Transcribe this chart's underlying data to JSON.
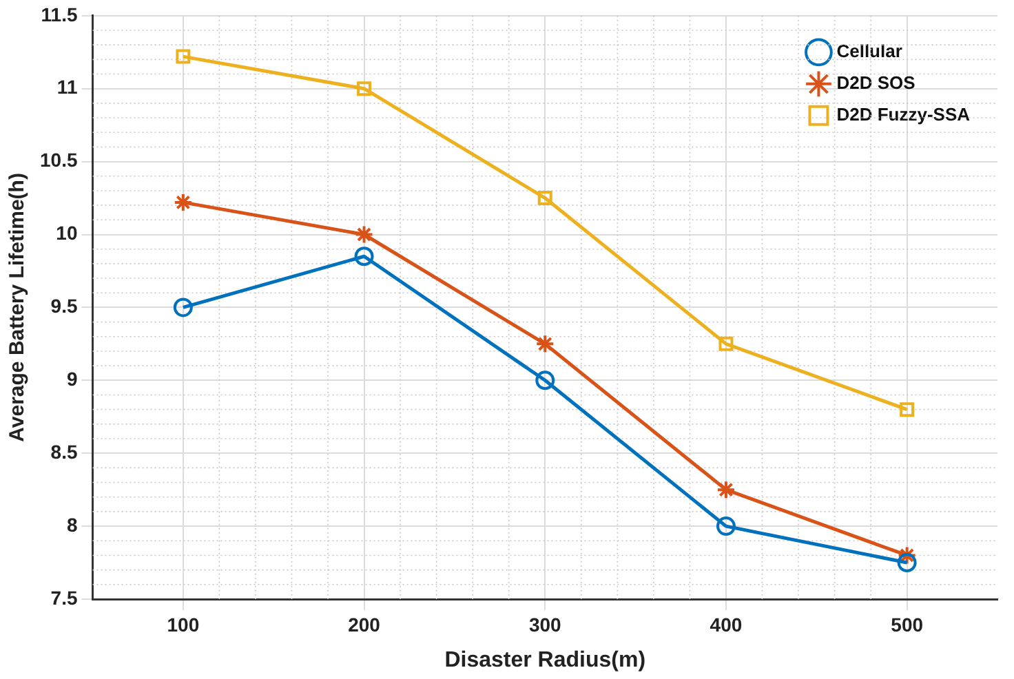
{
  "chart_data": {
    "type": "line",
    "xlabel": "Disaster Radius(m)",
    "ylabel": "Average Battery Lifetime(h)",
    "x": [
      100,
      200,
      300,
      400,
      500
    ],
    "xlim": [
      50,
      550
    ],
    "xticks": [
      100,
      200,
      300,
      400,
      500
    ],
    "ylim": [
      7.5,
      11.5
    ],
    "yticks": [
      7.5,
      8,
      8.5,
      9,
      9.5,
      10,
      10.5,
      11,
      11.5
    ],
    "grid": true,
    "legend": "top right",
    "line_style": "solid",
    "series": [
      {
        "name": "Cellular",
        "color": "#0072bd",
        "marker": "circle",
        "values": [
          9.5,
          9.85,
          9.0,
          8.0,
          7.75
        ]
      },
      {
        "name": "D2D SOS",
        "color": "#d95319",
        "marker": "cross",
        "values": [
          10.22,
          10.0,
          9.25,
          8.25,
          7.8
        ]
      },
      {
        "name": "D2D Fuzzy-SSA",
        "color": "#edb120",
        "marker": "square",
        "values": [
          11.22,
          11.0,
          10.25,
          9.25,
          8.8
        ]
      }
    ]
  }
}
